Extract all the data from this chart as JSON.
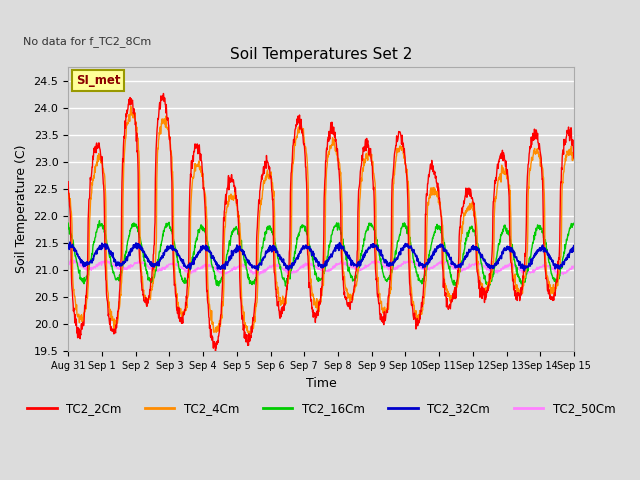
{
  "title": "Soil Temperatures Set 2",
  "xlabel": "Time",
  "ylabel": "Soil Temperature (C)",
  "no_data_label": "No data for f_TC2_8Cm",
  "si_met_label": "SI_met",
  "ylim": [
    19.5,
    24.75
  ],
  "yticks": [
    19.5,
    20.0,
    20.5,
    21.0,
    21.5,
    22.0,
    22.5,
    23.0,
    23.5,
    24.0,
    24.5
  ],
  "xtick_labels": [
    "Aug 31",
    "Sep 1",
    "Sep 2",
    "Sep 3",
    "Sep 4",
    "Sep 5",
    "Sep 6",
    "Sep 7",
    "Sep 8",
    "Sep 9",
    "Sep 10",
    "Sep 11",
    "Sep 12",
    "Sep 13",
    "Sep 14",
    "Sep 15"
  ],
  "colors": {
    "TC2_2Cm": "#FF0000",
    "TC2_4Cm": "#FF8C00",
    "TC2_16Cm": "#00CC00",
    "TC2_32Cm": "#0000CC",
    "TC2_50Cm": "#FF80FF"
  },
  "background_color": "#DCDCDC",
  "plot_bg_color": "#DCDCDC",
  "grid_color": "#FFFFFF",
  "mean_temp": 21.1,
  "peak_heights_2cm": [
    22.95,
    23.95,
    24.48,
    23.55,
    22.78,
    22.55,
    23.72,
    23.82,
    23.15,
    23.63,
    23.2,
    22.2,
    22.88,
    23.52
  ],
  "trough_heights_2cm": [
    19.85,
    19.85,
    20.5,
    20.0,
    19.55,
    19.75,
    20.3,
    20.1,
    20.4,
    20.0,
    20.0,
    20.45,
    20.55,
    20.5
  ],
  "peak_heights_4cm": [
    22.6,
    23.8,
    24.1,
    23.2,
    22.5,
    22.2,
    23.6,
    23.6,
    22.9,
    23.5,
    22.8,
    21.9,
    22.6,
    23.2
  ],
  "trough_heights_4cm": [
    20.1,
    20.0,
    20.5,
    20.15,
    19.85,
    19.85,
    20.5,
    20.3,
    20.5,
    20.2,
    20.1,
    20.55,
    20.65,
    20.6
  ]
}
